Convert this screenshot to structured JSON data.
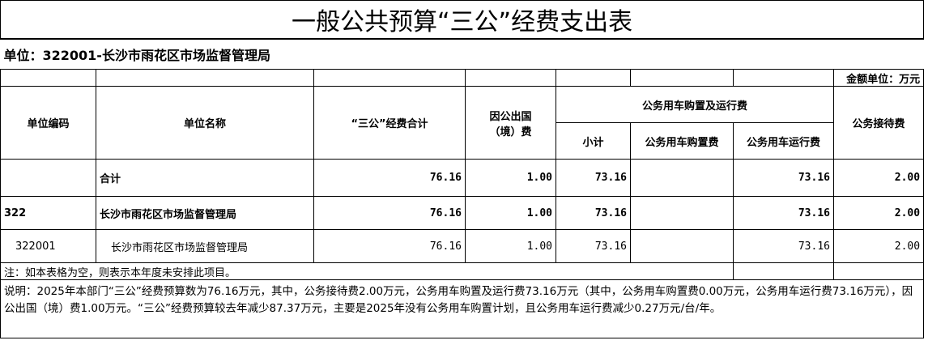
{
  "title": "一般公共预算“三公”经费支出表",
  "unit_line": "单位：322001-长沙市雨花区市场监督管理局",
  "amount_unit": "金额单位：万元",
  "headers": {
    "code": "单位编码",
    "name": "单位名称",
    "total": "“三公”经费合计",
    "abroad": "因公出国（境）费",
    "vehicle": "公务用车购置及运行费",
    "subtotal": "小计",
    "purchase": "公务用车购置费",
    "operation": "公务用车运行费",
    "reception": "公务接待费"
  },
  "rows": [
    {
      "code": "",
      "name": "合计",
      "total": "76.16",
      "abroad": "1.00",
      "subtotal": "73.16",
      "purchase": "",
      "operation": "73.16",
      "reception": "2.00"
    },
    {
      "code": "322",
      "name": "长沙市雨花区市场监督管理局",
      "total": "76.16",
      "abroad": "1.00",
      "subtotal": "73.16",
      "purchase": "",
      "operation": "73.16",
      "reception": "2.00"
    },
    {
      "code": "322001",
      "name": "长沙市雨花区市场监督管理局",
      "total": "76.16",
      "abroad": "1.00",
      "subtotal": "73.16",
      "purchase": "",
      "operation": "73.16",
      "reception": "2.00"
    }
  ],
  "note": "注：如本表格为空，则表示本年度未安排此项目。",
  "description": "说明：2025年本部门“三公”经费预算数为76.16万元，其中，公务接待费2.00万元，公务用车购置及运行费73.16万元（其中，公务用车购置费0.00万元，公务用车运行费73.16万元），因公出国（境）费1.00万元。“三公”经费预算较去年减少87.37万元，主要是2025年没有公务用车购置计划，且公务用车运行费减少0.27万元/台/年。"
}
